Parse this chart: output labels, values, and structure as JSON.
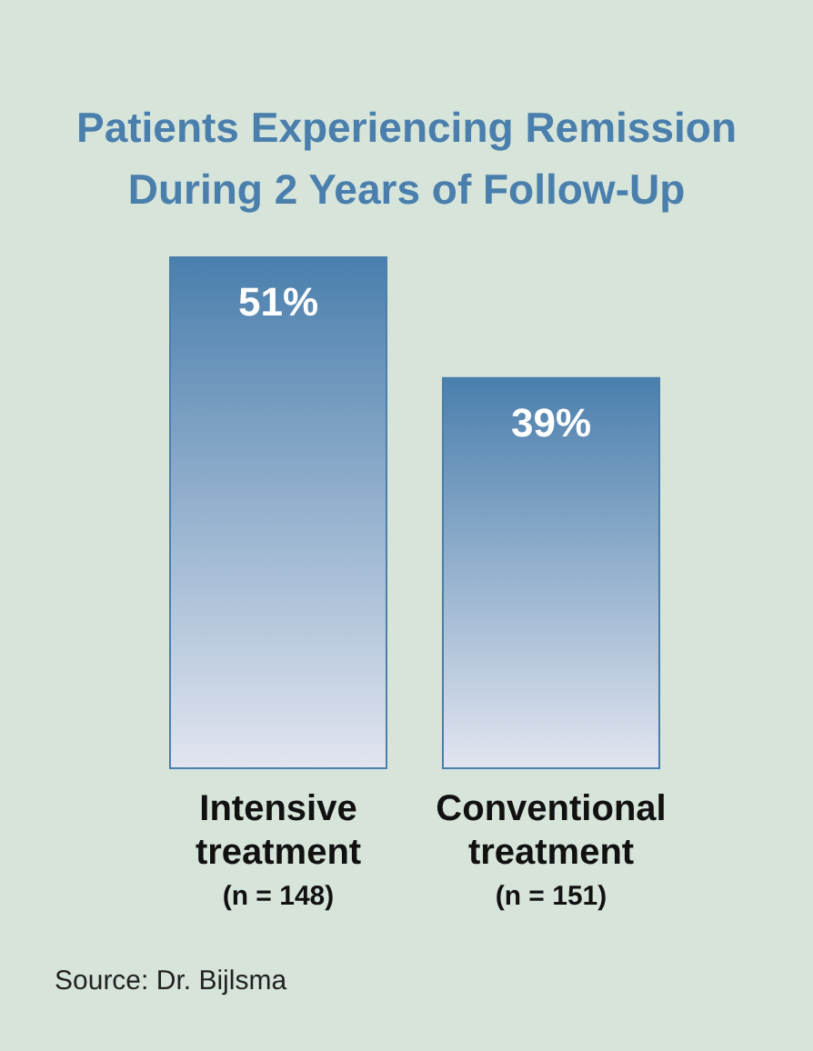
{
  "chart_data": {
    "type": "bar",
    "title": "Patients Experiencing Remission\nDuring 2 Years of Follow-Up",
    "categories": [
      "Intensive\ntreatment\n(n = 148)",
      "Conventional\ntreatment\n(n = 151)"
    ],
    "values": [
      51,
      39
    ],
    "value_labels": [
      "51%",
      "39%"
    ],
    "color": "#4a7fad",
    "annotations": [
      "Source: Dr. Bijlsma"
    ]
  }
}
